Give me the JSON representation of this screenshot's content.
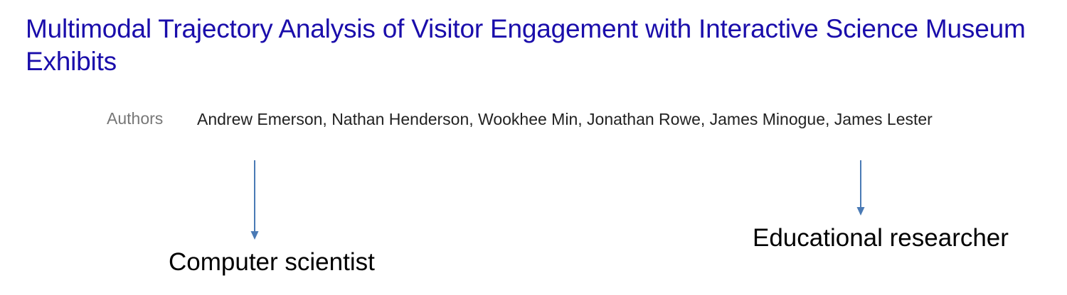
{
  "paper": {
    "title": "Multimodal Trajectory Analysis of Visitor Engagement with Interactive Science Museum Exhibits",
    "authors_label": "Authors",
    "authors": "Andrew Emerson, Nathan Henderson, Wookhee Min, Jonathan Rowe, James Minogue, James Lester"
  },
  "annotations": {
    "left": "Computer scientist",
    "right": "Educational researcher"
  },
  "colors": {
    "title": "#1a0dab",
    "arrow": "#4a7ab5",
    "authors_label": "#777777"
  },
  "icons": [
    "down-arrow-icon"
  ]
}
